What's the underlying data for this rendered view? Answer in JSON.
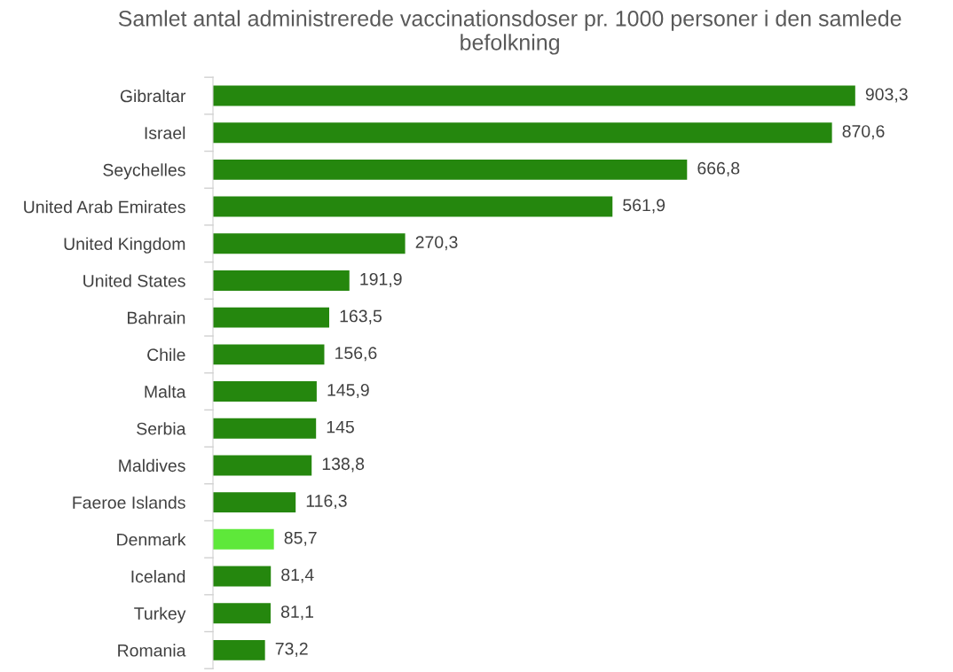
{
  "chart_data": {
    "type": "bar",
    "orientation": "horizontal",
    "title": "Samlet antal administrerede vaccinationsdoser pr. 1000 personer i den samlede befolkning",
    "categories": [
      "Gibraltar",
      "Israel",
      "Seychelles",
      "United Arab Emirates",
      "United Kingdom",
      "United States",
      "Bahrain",
      "Chile",
      "Malta",
      "Serbia",
      "Maldives",
      "Faeroe Islands",
      "Denmark",
      "Iceland",
      "Turkey",
      "Romania"
    ],
    "values": [
      903.3,
      870.6,
      666.8,
      561.9,
      270.3,
      191.9,
      163.5,
      156.6,
      145.9,
      145,
      138.8,
      116.3,
      85.7,
      81.4,
      81.1,
      73.2
    ],
    "value_labels": [
      "903,3",
      "870,6",
      "666,8",
      "561,9",
      "270,3",
      "191,9",
      "163,5",
      "156,6",
      "145,9",
      "145",
      "138,8",
      "116,3",
      "85,7",
      "81,4",
      "81,1",
      "73,2"
    ],
    "colors": [
      "#25870e",
      "#25870e",
      "#25870e",
      "#25870e",
      "#25870e",
      "#25870e",
      "#25870e",
      "#25870e",
      "#25870e",
      "#25870e",
      "#25870e",
      "#25870e",
      "#5ee83a",
      "#25870e",
      "#25870e",
      "#25870e"
    ],
    "grid": false,
    "legend": false
  }
}
